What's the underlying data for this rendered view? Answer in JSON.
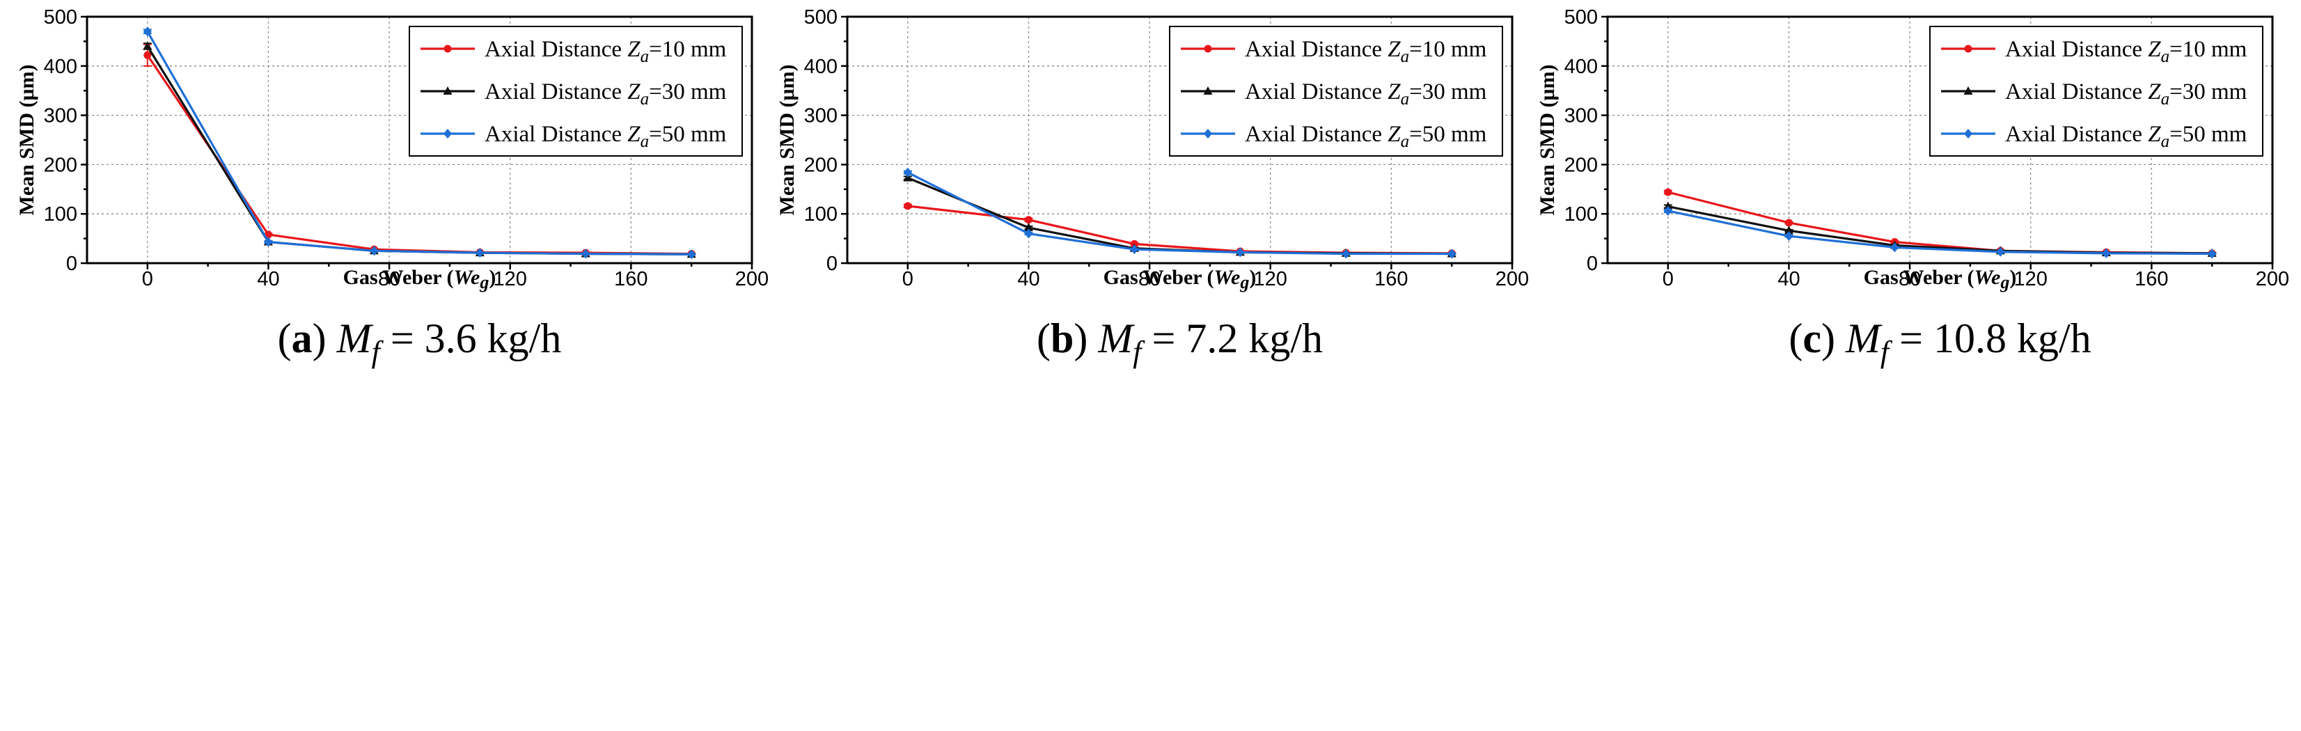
{
  "figure": {
    "x_tick_labels": [
      "0",
      "40",
      "80",
      "120",
      "160",
      "200"
    ],
    "y_tick_labels": [
      "0",
      "100",
      "200",
      "300",
      "400",
      "500"
    ],
    "xlabel_prefix": "Gas Weber (",
    "xlabel_var": "We",
    "xlabel_sub": "g",
    "xlabel_suffix": ")",
    "ylabel": "Mean SMD (μm)",
    "legend_prefix": "Axial Distance ",
    "legend_var": "Z",
    "legend_sub": "a",
    "series_colors": [
      "#e8161b",
      "#111111",
      "#1f6fd6"
    ],
    "legend_labels": [
      "=10 mm",
      "=30 mm",
      "=50 mm"
    ],
    "caption_var": "M",
    "caption_sub": "f",
    "caption_eq": "=",
    "captions": [
      {
        "letter": "a",
        "value": "3.6 kg/h"
      },
      {
        "letter": "b",
        "value": "7.2 kg/h"
      },
      {
        "letter": "c",
        "value": "10.8 kg/h"
      }
    ]
  },
  "chart_data": [
    {
      "type": "line",
      "title": "",
      "xlabel": "Gas Weber (Weg)",
      "ylabel": "Mean SMD (μm)",
      "xlim": [
        -20,
        200
      ],
      "ylim": [
        0,
        500
      ],
      "grid": true,
      "legend": "top-right",
      "x": [
        0,
        40,
        75,
        110,
        145,
        180
      ],
      "series": [
        {
          "name": "Axial Distance Za=10 mm",
          "values": [
            422,
            58,
            28,
            22,
            21,
            19
          ],
          "errors": [
            22,
            2,
            1,
            1,
            1,
            1
          ]
        },
        {
          "name": "Axial Distance Za=30 mm",
          "values": [
            440,
            43,
            25,
            21,
            19,
            18
          ],
          "errors": [
            6,
            2,
            1,
            1,
            1,
            1
          ]
        },
        {
          "name": "Axial Distance Za=50 mm",
          "values": [
            470,
            43,
            25,
            21,
            19,
            18
          ],
          "errors": [
            4,
            2,
            1,
            1,
            1,
            1
          ]
        }
      ]
    },
    {
      "type": "line",
      "title": "",
      "xlabel": "Gas Weber (Weg)",
      "ylabel": "Mean SMD (μm)",
      "xlim": [
        -20,
        200
      ],
      "ylim": [
        0,
        500
      ],
      "grid": true,
      "legend": "top-right",
      "x": [
        0,
        40,
        75,
        110,
        145,
        180
      ],
      "series": [
        {
          "name": "Axial Distance Za=10 mm",
          "values": [
            116,
            88,
            39,
            24,
            21,
            20
          ],
          "errors": [
            3,
            3,
            2,
            1,
            1,
            1
          ]
        },
        {
          "name": "Axial Distance Za=30 mm",
          "values": [
            173,
            72,
            30,
            22,
            20,
            19
          ],
          "errors": [
            3,
            3,
            2,
            1,
            1,
            1
          ]
        },
        {
          "name": "Axial Distance Za=50 mm",
          "values": [
            184,
            60,
            28,
            22,
            19,
            19
          ],
          "errors": [
            3,
            2,
            1,
            1,
            1,
            1
          ]
        }
      ]
    },
    {
      "type": "line",
      "title": "",
      "xlabel": "Gas Weber (Weg)",
      "ylabel": "Mean SMD (μm)",
      "xlim": [
        -20,
        200
      ],
      "ylim": [
        0,
        500
      ],
      "grid": true,
      "legend": "top-right",
      "x": [
        0,
        40,
        75,
        110,
        145,
        180
      ],
      "series": [
        {
          "name": "Axial Distance Za=10 mm",
          "values": [
            144,
            82,
            43,
            25,
            22,
            20
          ],
          "errors": [
            3,
            2,
            2,
            1,
            1,
            1
          ]
        },
        {
          "name": "Axial Distance Za=30 mm",
          "values": [
            115,
            66,
            36,
            25,
            21,
            20
          ],
          "errors": [
            3,
            2,
            2,
            1,
            1,
            1
          ]
        },
        {
          "name": "Axial Distance Za=50 mm",
          "values": [
            106,
            55,
            32,
            23,
            20,
            19
          ],
          "errors": [
            3,
            2,
            1,
            1,
            1,
            1
          ]
        }
      ]
    }
  ]
}
